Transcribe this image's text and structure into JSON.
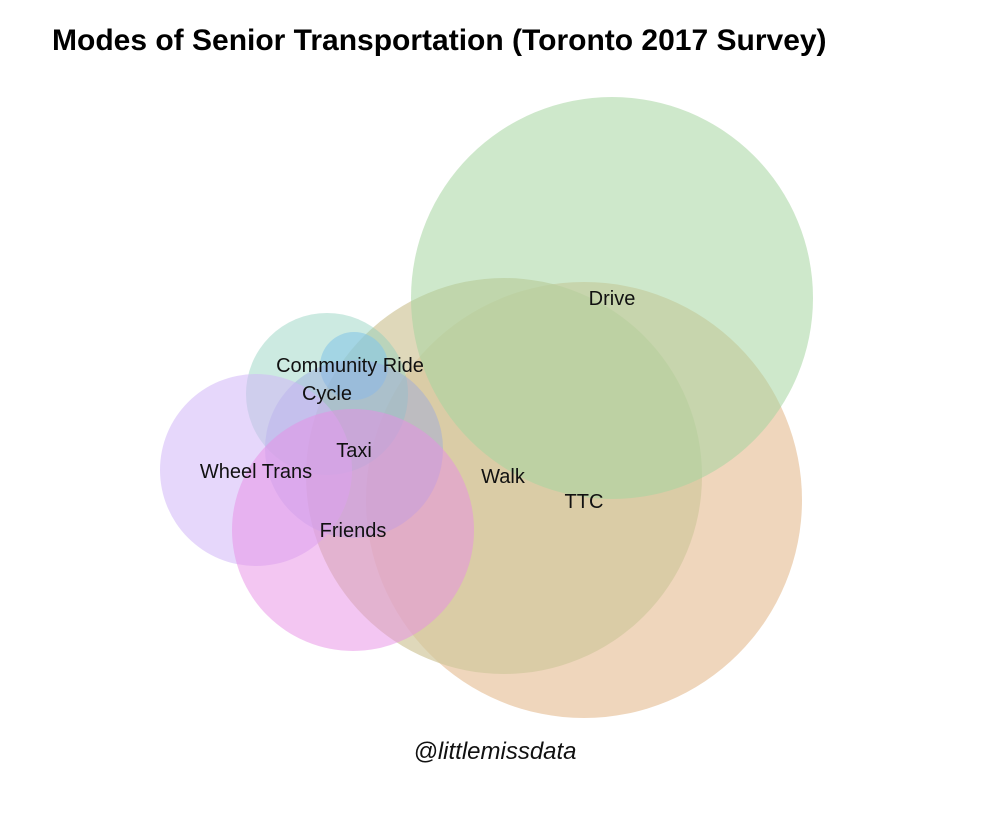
{
  "title": "Modes of Senior Transportation (Toronto 2017 Survey)",
  "credit": "@littlemissdata",
  "sets": [
    {
      "key": "ttc",
      "label": "TTC",
      "color": "#e8c4a0"
    },
    {
      "key": "walk",
      "label": "Walk",
      "color": "#d2c79c"
    },
    {
      "key": "drive",
      "label": "Drive",
      "color": "#a6d6a0"
    },
    {
      "key": "community_ride",
      "label": "Community Ride",
      "color": "#8fd1bd"
    },
    {
      "key": "cycle",
      "label": "Cycle",
      "color": "#87c6e6"
    },
    {
      "key": "taxi",
      "label": "Taxi",
      "color": "#98a8df"
    },
    {
      "key": "wheel_trans",
      "label": "Wheel Trans",
      "color": "#d2b6f7"
    },
    {
      "key": "friends",
      "label": "Friends",
      "color": "#e78ee5"
    }
  ]
}
